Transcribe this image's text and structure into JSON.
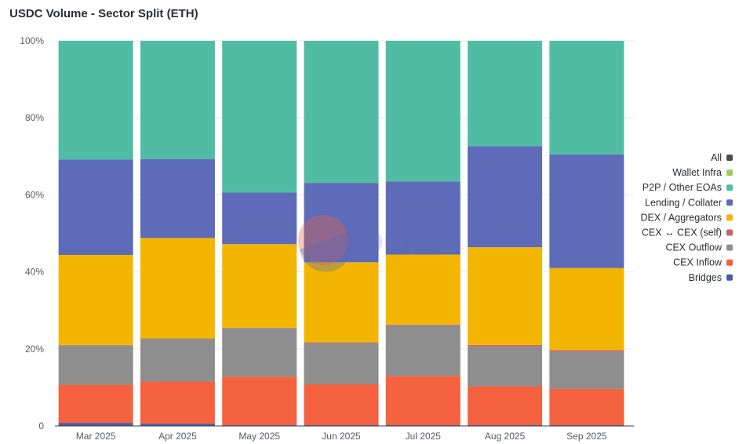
{
  "title": "USDC Volume - Sector Split (ETH)",
  "watermark": {
    "text": "Dune"
  },
  "chart_data": {
    "type": "bar",
    "stacked": true,
    "categories": [
      "Mar 2025",
      "Apr 2025",
      "May 2025",
      "Jun 2025",
      "Jul 2025",
      "Aug 2025",
      "Sep 2025"
    ],
    "ylim": [
      0,
      100
    ],
    "yticks": [
      "0",
      "20%",
      "40%",
      "60%",
      "80%",
      "100%"
    ],
    "ytick_values": [
      0,
      20,
      40,
      60,
      80,
      100
    ],
    "grid": true,
    "legend_position": "right",
    "series": [
      {
        "name": "Bridges",
        "color": "#4b5da8",
        "values": [
          0.8,
          0.6,
          0.2,
          0.2,
          0.2,
          0.2,
          0.2
        ]
      },
      {
        "name": "CEX Inflow",
        "color": "#f4623f",
        "values": [
          9.9,
          10.9,
          12.6,
          10.6,
          12.8,
          10.1,
          9.4
        ]
      },
      {
        "name": "CEX Outflow",
        "color": "#8e8e8e",
        "values": [
          10.2,
          11.1,
          12.6,
          10.8,
          13.1,
          10.3,
          9.7
        ]
      },
      {
        "name": "CEX ↔ CEX (self)",
        "color": "#c8606f",
        "values": [
          0.1,
          0.1,
          0.1,
          0.1,
          0.2,
          0.4,
          0.4
        ]
      },
      {
        "name": "DEX / Aggregators",
        "color": "#f2b600",
        "values": [
          23.4,
          26.1,
          21.7,
          20.8,
          18.2,
          25.4,
          21.3
        ]
      },
      {
        "name": "Lending / Collateral",
        "color": "#5d6bb8",
        "values": [
          24.8,
          20.5,
          13.4,
          20.6,
          19.0,
          26.2,
          29.5
        ]
      },
      {
        "name": "P2P / Other EOAs",
        "color": "#51bca4",
        "values": [
          30.8,
          30.7,
          39.4,
          36.9,
          36.5,
          27.4,
          29.5
        ]
      },
      {
        "name": "Wallet Infra",
        "color": "#9bcf57",
        "values": [
          0,
          0,
          0,
          0,
          0,
          0,
          0
        ]
      },
      {
        "name": "All",
        "color": "#4a4d52",
        "values": [
          0,
          0,
          0,
          0,
          0,
          0,
          0
        ]
      }
    ]
  },
  "legend": [
    {
      "label": "All",
      "color": "#4a4d52"
    },
    {
      "label": "Wallet Infra",
      "color": "#9bcf57"
    },
    {
      "label": "P2P / Other EOAs",
      "color": "#51bca4"
    },
    {
      "label": "Lending / Collater",
      "color": "#5d6bb8"
    },
    {
      "label": "DEX / Aggregators",
      "color": "#f2b600"
    },
    {
      "label": "CEX ↔ CEX (self)",
      "color": "#c8606f"
    },
    {
      "label": "CEX Outflow",
      "color": "#8e8e8e"
    },
    {
      "label": "CEX Inflow",
      "color": "#f4623f"
    },
    {
      "label": "Bridges",
      "color": "#4b5da8"
    }
  ]
}
